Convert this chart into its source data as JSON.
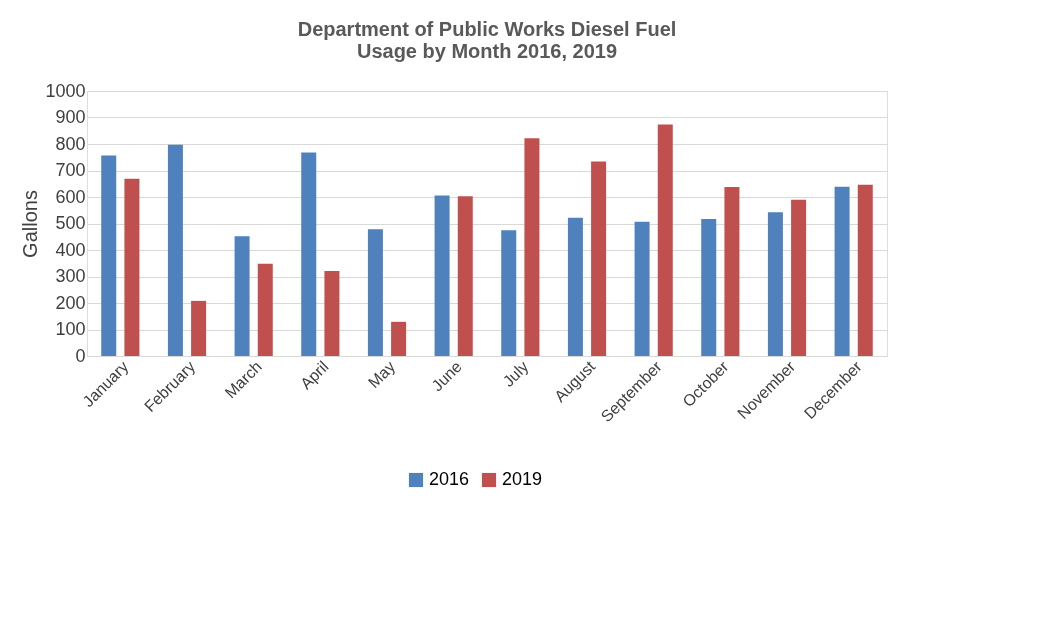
{
  "chart_data": {
    "type": "bar",
    "title": "Department of Public Works Diesel Fuel Usage by Month 2016, 2019",
    "ylabel": "Gallons",
    "categories": [
      "January",
      "February",
      "March",
      "April",
      "May",
      "June",
      "July",
      "August",
      "September",
      "October",
      "November",
      "December"
    ],
    "series": [
      {
        "name": "2016",
        "color": "#4f81bd",
        "values": [
          757,
          797,
          452,
          768,
          478,
          606,
          475,
          522,
          507,
          517,
          542,
          639
        ]
      },
      {
        "name": "2019",
        "color": "#c0504d",
        "values": [
          669,
          208,
          348,
          321,
          129,
          603,
          822,
          734,
          874,
          638,
          590,
          646
        ]
      }
    ],
    "ylim": [
      0,
      1000
    ],
    "yticks": [
      0,
      100,
      200,
      300,
      400,
      500,
      600,
      700,
      800,
      900,
      1000
    ],
    "grid": "y",
    "legend": "bottom"
  }
}
